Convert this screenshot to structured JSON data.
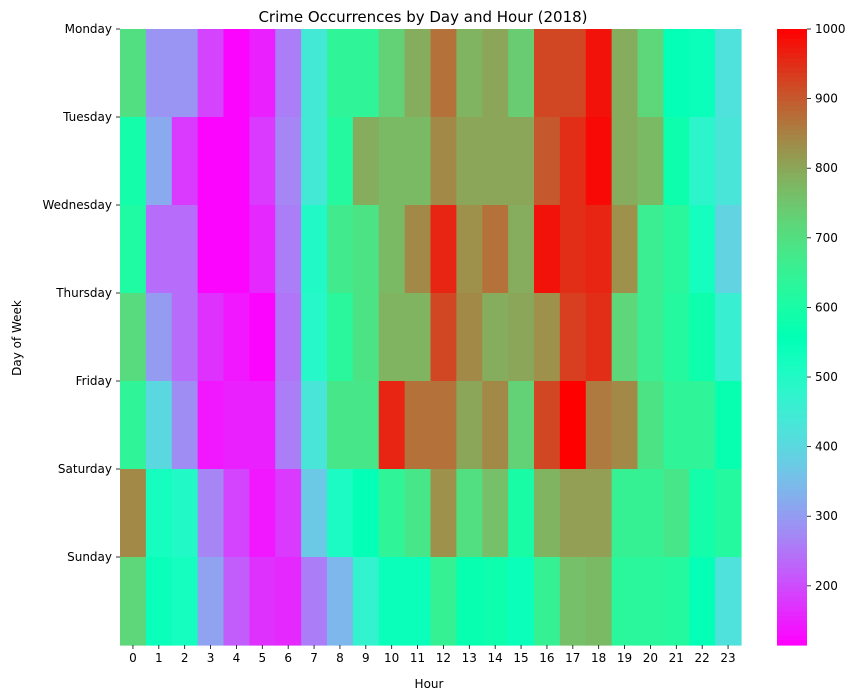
{
  "chart_data": {
    "type": "heatmap",
    "title": "Crime Occurrences by Day and Hour (2018)",
    "xlabel": "Hour",
    "ylabel": "Day of Week",
    "x": [
      "0",
      "1",
      "2",
      "3",
      "4",
      "5",
      "6",
      "7",
      "8",
      "9",
      "10",
      "11",
      "12",
      "13",
      "14",
      "15",
      "16",
      "17",
      "18",
      "19",
      "20",
      "21",
      "22",
      "23"
    ],
    "y": [
      "Monday",
      "Tuesday",
      "Wednesday",
      "Thursday",
      "Friday",
      "Saturday",
      "Sunday"
    ],
    "values": [
      [
        700,
        290,
        290,
        190,
        120,
        150,
        260,
        440,
        640,
        640,
        730,
        790,
        870,
        780,
        800,
        740,
        920,
        920,
        980,
        790,
        720,
        550,
        540,
        420
      ],
      [
        590,
        320,
        180,
        120,
        120,
        180,
        270,
        440,
        620,
        790,
        770,
        770,
        840,
        800,
        800,
        800,
        900,
        950,
        990,
        790,
        770,
        580,
        480,
        430
      ],
      [
        610,
        240,
        240,
        120,
        120,
        160,
        260,
        500,
        670,
        690,
        770,
        840,
        960,
        830,
        870,
        790,
        980,
        950,
        960,
        830,
        660,
        630,
        520,
        390
      ],
      [
        710,
        300,
        240,
        170,
        140,
        120,
        250,
        490,
        630,
        690,
        780,
        780,
        920,
        840,
        790,
        800,
        830,
        930,
        950,
        720,
        660,
        620,
        580,
        460
      ],
      [
        640,
        400,
        280,
        140,
        150,
        150,
        260,
        430,
        680,
        680,
        960,
        870,
        870,
        800,
        840,
        730,
        920,
        1000,
        860,
        840,
        690,
        640,
        640,
        570
      ],
      [
        840,
        520,
        500,
        270,
        190,
        140,
        180,
        370,
        510,
        550,
        640,
        680,
        830,
        700,
        760,
        600,
        780,
        810,
        810,
        650,
        650,
        680,
        590,
        620
      ],
      [
        720,
        540,
        520,
        310,
        220,
        170,
        160,
        260,
        340,
        470,
        540,
        540,
        650,
        570,
        580,
        540,
        650,
        760,
        770,
        630,
        630,
        620,
        550,
        420
      ]
    ],
    "colorbar": {
      "min": 115,
      "max": 1000,
      "ticks": [
        200,
        300,
        400,
        500,
        600,
        700,
        800,
        900,
        1000
      ]
    },
    "colormap": "rainbow"
  }
}
